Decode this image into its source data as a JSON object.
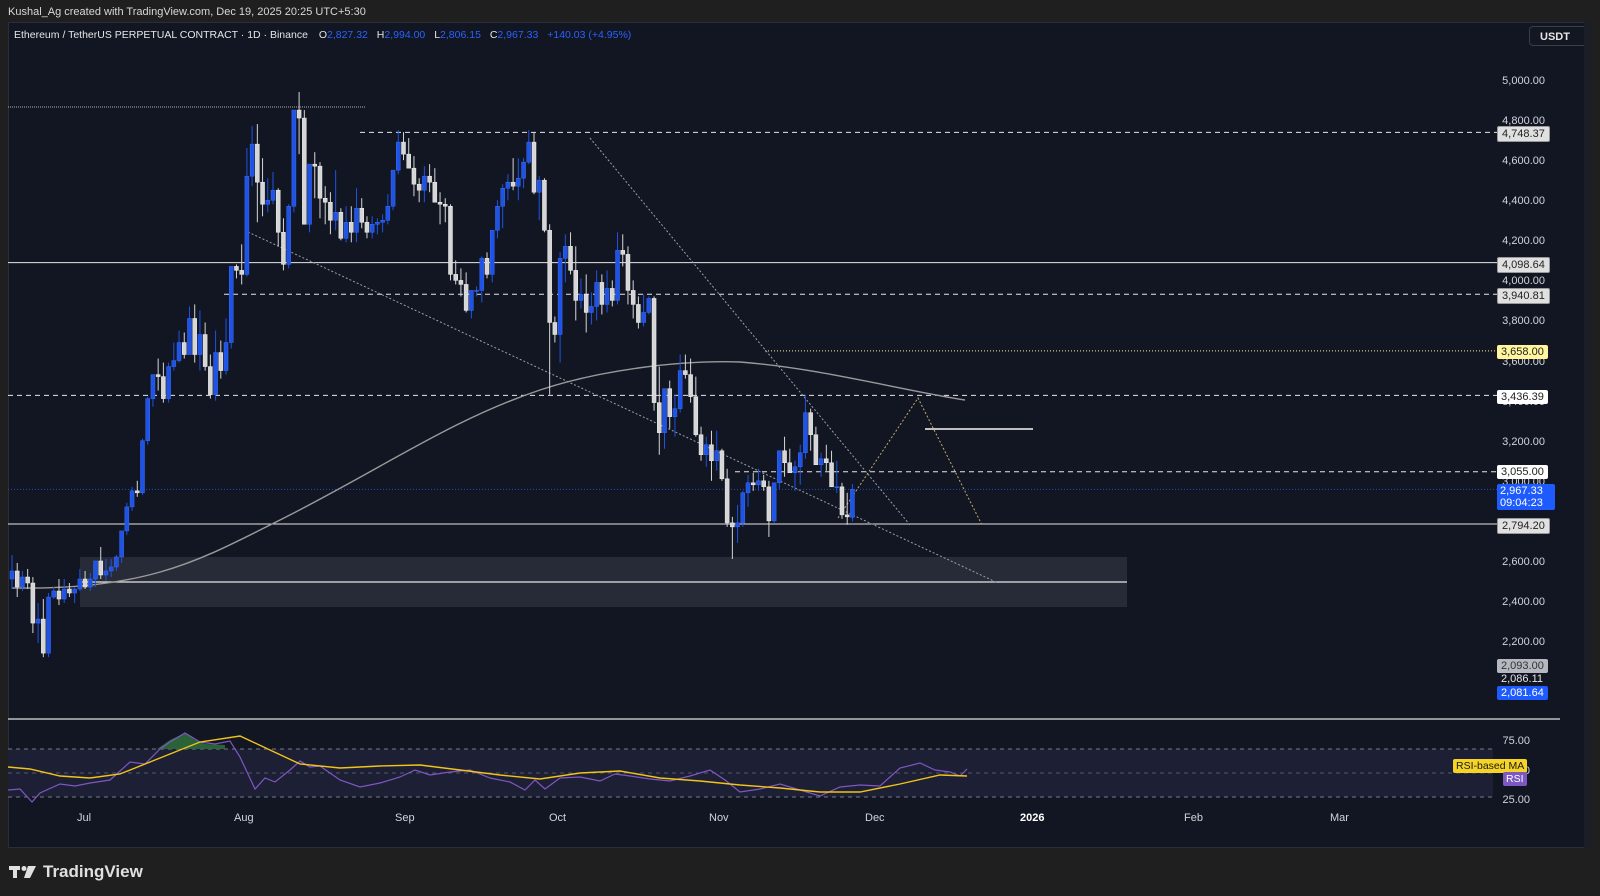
{
  "watermark": "Kushal_Ag created with TradingView.com, Dec 19, 2025 20:25 UTC+5:30",
  "legend": {
    "symbol": "Ethereum / TetherUS PERPETUAL CONTRACT · 1D · Binance",
    "open_label": "O",
    "open": "2,827.32",
    "high_label": "H",
    "high": "2,994.00",
    "low_label": "L",
    "low": "2,806.15",
    "close_label": "C",
    "close": "2,967.33",
    "change": "+140.03 (+4.95%)"
  },
  "currency_button": "USDT",
  "colors": {
    "background": "#111622",
    "up_candle": "#1e53e5",
    "down_candle": "#d6d6d6",
    "accent_blue": "#2962ff",
    "rsi_line": "#7e57c2",
    "rsi_ma": "#f0c419",
    "ma_line": "#9a9a9a",
    "highlight_yellow": "#fff59d"
  },
  "price_axis": {
    "ticks": [
      "5,000.00",
      "4,800.00",
      "4,600.00",
      "4,400.00",
      "4,200.00",
      "4,000.00",
      "3,800.00",
      "3,600.00",
      "3,400.00",
      "3,200.00",
      "3,000.00",
      "2,600.00",
      "2,400.00",
      "2,200.00"
    ],
    "levels": [
      {
        "value": "4,748.37",
        "style": "light"
      },
      {
        "value": "4,098.64",
        "style": "light"
      },
      {
        "value": "3,940.81",
        "style": "light"
      },
      {
        "value": "3,658.00",
        "style": "yellow"
      },
      {
        "value": "3,436.39",
        "style": "white"
      },
      {
        "value": "3,055.00",
        "style": "white"
      },
      {
        "value": "2,794.20",
        "style": "light"
      },
      {
        "value": "2,093.00",
        "style": "grey"
      },
      {
        "value": "2,086.11",
        "style": "plain"
      },
      {
        "value": "2,081.64",
        "style": "blue"
      }
    ],
    "last_price": "2,967.33",
    "countdown": "09:04:23"
  },
  "time_axis": [
    "Jul",
    "Aug",
    "Sep",
    "Oct",
    "Nov",
    "Dec",
    "2026",
    "Feb",
    "Mar"
  ],
  "rsi_panel": {
    "ticks": [
      "75.00",
      "50.00",
      "25.00"
    ],
    "ma_label": "RSI-based MA",
    "rsi_label": "RSI"
  },
  "brand": "TradingView",
  "chart_data": {
    "type": "candlestick",
    "title": "Ethereum / TetherUS PERPETUAL CONTRACT · 1D · Binance",
    "xlabel": "",
    "ylabel": "USDT",
    "ylim": [
      2050,
      5100
    ],
    "x_ticks": [
      "Jul",
      "Aug",
      "Sep",
      "Oct",
      "Nov",
      "Dec",
      "2026",
      "Feb",
      "Mar"
    ],
    "horizontal_levels": [
      4748.37,
      4098.64,
      3940.81,
      3658.0,
      3436.39,
      3055.0,
      2794.2
    ],
    "demand_zone": [
      2380,
      2630
    ],
    "zone_midline": 2505,
    "last": {
      "open": 2827.32,
      "high": 2994.0,
      "low": 2806.15,
      "close": 2967.33,
      "change": 140.03,
      "change_pct": 4.95
    },
    "candles": [
      [
        2520,
        2640,
        2470,
        2560
      ],
      [
        2560,
        2600,
        2430,
        2480
      ],
      [
        2480,
        2560,
        2460,
        2530
      ],
      [
        2530,
        2570,
        2470,
        2500
      ],
      [
        2500,
        2530,
        2250,
        2300
      ],
      [
        2300,
        2400,
        2200,
        2320
      ],
      [
        2320,
        2420,
        2130,
        2150
      ],
      [
        2150,
        2450,
        2130,
        2430
      ],
      [
        2430,
        2480,
        2420,
        2460
      ],
      [
        2460,
        2520,
        2390,
        2420
      ],
      [
        2420,
        2520,
        2400,
        2470
      ],
      [
        2470,
        2500,
        2430,
        2450
      ],
      [
        2450,
        2480,
        2400,
        2470
      ],
      [
        2470,
        2570,
        2460,
        2520
      ],
      [
        2520,
        2560,
        2470,
        2480
      ],
      [
        2480,
        2550,
        2460,
        2520
      ],
      [
        2520,
        2600,
        2480,
        2610
      ],
      [
        2610,
        2680,
        2520,
        2540
      ],
      [
        2540,
        2620,
        2510,
        2560
      ],
      [
        2560,
        2620,
        2530,
        2580
      ],
      [
        2580,
        2640,
        2560,
        2630
      ],
      [
        2630,
        2700,
        2600,
        2760
      ],
      [
        2760,
        2900,
        2740,
        2880
      ],
      [
        2880,
        2980,
        2860,
        2960
      ],
      [
        2960,
        3010,
        2930,
        2950
      ],
      [
        2950,
        3220,
        2940,
        3210
      ],
      [
        3210,
        3430,
        3190,
        3420
      ],
      [
        3420,
        3540,
        3380,
        3540
      ],
      [
        3540,
        3620,
        3460,
        3530
      ],
      [
        3530,
        3600,
        3400,
        3420
      ],
      [
        3420,
        3600,
        3400,
        3580
      ],
      [
        3580,
        3700,
        3560,
        3610
      ],
      [
        3610,
        3760,
        3600,
        3700
      ],
      [
        3700,
        3750,
        3620,
        3640
      ],
      [
        3640,
        3880,
        3640,
        3820
      ],
      [
        3820,
        3890,
        3600,
        3640
      ],
      [
        3640,
        3860,
        3560,
        3740
      ],
      [
        3740,
        3800,
        3560,
        3580
      ],
      [
        3580,
        3640,
        3420,
        3440
      ],
      [
        3440,
        3760,
        3410,
        3650
      ],
      [
        3650,
        3710,
        3520,
        3560
      ],
      [
        3560,
        3820,
        3540,
        3700
      ],
      [
        3700,
        3980,
        3670,
        4080
      ],
      [
        4080,
        4090,
        4020,
        4060
      ],
      [
        4060,
        4190,
        3990,
        4040
      ],
      [
        4040,
        4670,
        4030,
        4530
      ],
      [
        4530,
        4780,
        4480,
        4690
      ],
      [
        4690,
        4790,
        4300,
        4500
      ],
      [
        4500,
        4620,
        4330,
        4390
      ],
      [
        4390,
        4520,
        4350,
        4410
      ],
      [
        4410,
        4550,
        4390,
        4460
      ],
      [
        4460,
        4470,
        4180,
        4250
      ],
      [
        4250,
        4320,
        4060,
        4090
      ],
      [
        4090,
        4390,
        4070,
        4380
      ],
      [
        4380,
        4850,
        4350,
        4860
      ],
      [
        4860,
        4950,
        4640,
        4820
      ],
      [
        4820,
        4860,
        4300,
        4290
      ],
      [
        4290,
        4540,
        4250,
        4590
      ],
      [
        4590,
        4650,
        4420,
        4580
      ],
      [
        4580,
        4600,
        4320,
        4420
      ],
      [
        4420,
        4480,
        4290,
        4400
      ],
      [
        4400,
        4450,
        4240,
        4310
      ],
      [
        4310,
        4560,
        4260,
        4350
      ],
      [
        4350,
        4370,
        4210,
        4220
      ],
      [
        4220,
        4380,
        4200,
        4300
      ],
      [
        4300,
        4380,
        4200,
        4250
      ],
      [
        4250,
        4470,
        4200,
        4370
      ],
      [
        4370,
        4420,
        4270,
        4300
      ],
      [
        4300,
        4330,
        4220,
        4250
      ],
      [
        4250,
        4330,
        4220,
        4290
      ],
      [
        4290,
        4320,
        4240,
        4300
      ],
      [
        4300,
        4340,
        4250,
        4310
      ],
      [
        4310,
        4440,
        4290,
        4380
      ],
      [
        4380,
        4540,
        4360,
        4560
      ],
      [
        4560,
        4760,
        4540,
        4700
      ],
      [
        4700,
        4750,
        4610,
        4640
      ],
      [
        4640,
        4720,
        4580,
        4570
      ],
      [
        4570,
        4630,
        4430,
        4490
      ],
      [
        4490,
        4520,
        4400,
        4460
      ],
      [
        4460,
        4580,
        4400,
        4530
      ],
      [
        4530,
        4590,
        4450,
        4500
      ],
      [
        4500,
        4570,
        4440,
        4400
      ],
      [
        4400,
        4450,
        4290,
        4390
      ],
      [
        4390,
        4420,
        4300,
        4380
      ],
      [
        4380,
        4390,
        4010,
        4040
      ],
      [
        4040,
        4110,
        3990,
        4010
      ],
      [
        4010,
        4070,
        3930,
        3990
      ],
      [
        3990,
        4050,
        3850,
        3860
      ],
      [
        3860,
        3960,
        3820,
        3960
      ],
      [
        3960,
        3980,
        3930,
        3960
      ],
      [
        3960,
        4130,
        3900,
        4120
      ],
      [
        4120,
        4150,
        4020,
        4040
      ],
      [
        4040,
        4210,
        4000,
        4260
      ],
      [
        4260,
        4410,
        4220,
        4380
      ],
      [
        4380,
        4490,
        4270,
        4470
      ],
      [
        4470,
        4540,
        4410,
        4500
      ],
      [
        4500,
        4620,
        4460,
        4480
      ],
      [
        4480,
        4620,
        4410,
        4520
      ],
      [
        4520,
        4620,
        4470,
        4600
      ],
      [
        4600,
        4760,
        4590,
        4700
      ],
      [
        4700,
        4750,
        4440,
        4450
      ],
      [
        4450,
        4530,
        4310,
        4510
      ],
      [
        4510,
        4520,
        4250,
        4260
      ],
      [
        4260,
        4290,
        3440,
        3800
      ],
      [
        3800,
        3830,
        3700,
        3740
      ],
      [
        3740,
        4150,
        3600,
        4120
      ],
      [
        4120,
        4240,
        4000,
        4180
      ],
      [
        4180,
        4250,
        4040,
        4060
      ],
      [
        4060,
        4180,
        3810,
        3910
      ],
      [
        3910,
        4020,
        3870,
        3940
      ],
      [
        3940,
        4040,
        3750,
        3850
      ],
      [
        3850,
        3950,
        3790,
        3880
      ],
      [
        3880,
        4060,
        3810,
        4000
      ],
      [
        4000,
        4040,
        3840,
        3890
      ],
      [
        3890,
        4060,
        3850,
        3970
      ],
      [
        3970,
        4010,
        3880,
        3910
      ],
      [
        3910,
        4250,
        3890,
        4160
      ],
      [
        4160,
        4240,
        4080,
        4140
      ],
      [
        4140,
        4180,
        3890,
        3960
      ],
      [
        3960,
        4010,
        3820,
        3890
      ],
      [
        3890,
        3930,
        3770,
        3800
      ],
      [
        3800,
        3940,
        3780,
        3850
      ],
      [
        3850,
        3930,
        3840,
        3920
      ],
      [
        3920,
        3930,
        3360,
        3400
      ],
      [
        3400,
        3580,
        3140,
        3250
      ],
      [
        3250,
        3440,
        3170,
        3470
      ],
      [
        3470,
        3510,
        3270,
        3330
      ],
      [
        3330,
        3440,
        3230,
        3370
      ],
      [
        3370,
        3640,
        3350,
        3560
      ],
      [
        3560,
        3640,
        3520,
        3540
      ],
      [
        3540,
        3620,
        3400,
        3430
      ],
      [
        3430,
        3530,
        3230,
        3240
      ],
      [
        3240,
        3280,
        3110,
        3140
      ],
      [
        3140,
        3230,
        3080,
        3190
      ],
      [
        3190,
        3260,
        3010,
        3110
      ],
      [
        3110,
        3260,
        3060,
        3160
      ],
      [
        3160,
        3170,
        3010,
        3020
      ],
      [
        3020,
        3070,
        2780,
        2800
      ],
      [
        2800,
        2830,
        2620,
        2780
      ],
      [
        2780,
        2890,
        2700,
        2800
      ],
      [
        2800,
        2960,
        2780,
        2950
      ],
      [
        2950,
        3040,
        2880,
        3000
      ],
      [
        3000,
        3050,
        2960,
        2990
      ],
      [
        2990,
        3070,
        2960,
        3010
      ],
      [
        3010,
        3040,
        2960,
        2980
      ],
      [
        2980,
        3010,
        2730,
        2810
      ],
      [
        2810,
        3000,
        2800,
        3000
      ],
      [
        3000,
        3140,
        2970,
        3160
      ],
      [
        3160,
        3230,
        3030,
        3100
      ],
      [
        3100,
        3170,
        3060,
        3050
      ],
      [
        3050,
        3110,
        2960,
        3080
      ],
      [
        3080,
        3190,
        2990,
        3150
      ],
      [
        3150,
        3440,
        3120,
        3350
      ],
      [
        3350,
        3370,
        3160,
        3240
      ],
      [
        3240,
        3280,
        3130,
        3090
      ],
      [
        3090,
        3150,
        3030,
        3120
      ],
      [
        3120,
        3190,
        3060,
        3100
      ],
      [
        3100,
        3160,
        2990,
        2980
      ],
      [
        2980,
        3110,
        2950,
        2980
      ],
      [
        2980,
        3000,
        2820,
        2840
      ],
      [
        2840,
        2950,
        2790,
        2830
      ],
      [
        2827.32,
        2994,
        2806.15,
        2967.33
      ]
    ],
    "ma_200_approx": [
      [
        0,
        2520
      ],
      [
        60,
        2530
      ],
      [
        120,
        2620
      ],
      [
        180,
        2800
      ],
      [
        240,
        3050
      ],
      [
        300,
        3280
      ],
      [
        360,
        3420
      ],
      [
        420,
        3520
      ],
      [
        480,
        3560
      ],
      [
        540,
        3590
      ],
      [
        600,
        3620
      ],
      [
        660,
        3610
      ],
      [
        720,
        3610
      ],
      [
        760,
        3600
      ],
      [
        800,
        3560
      ],
      [
        840,
        3530
      ],
      [
        880,
        3490
      ],
      [
        920,
        3460
      ],
      [
        960,
        3420
      ]
    ],
    "rsi_series": {
      "overbought": 70,
      "oversold": 30,
      "mid": 50,
      "last_rsi": 45,
      "last_ma": 48
    }
  }
}
